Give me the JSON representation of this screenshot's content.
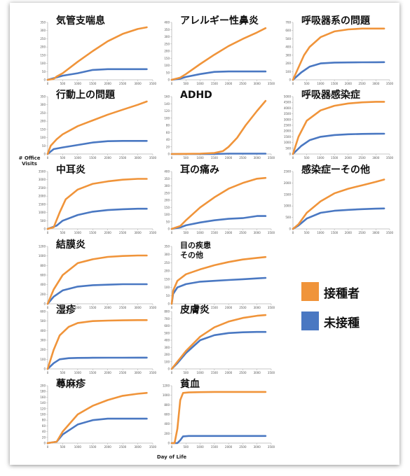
{
  "chart_data": [
    {
      "type": "line",
      "title": "気管支喘息",
      "xlim": [
        0,
        3500
      ],
      "ylim": [
        0,
        350
      ],
      "ytick_step": 50,
      "series": [
        {
          "name": "接種者",
          "x": [
            0,
            200,
            300,
            500,
            1000,
            1500,
            2000,
            2500,
            3000,
            3300
          ],
          "y": [
            0,
            5,
            20,
            40,
            110,
            175,
            235,
            280,
            310,
            320
          ]
        },
        {
          "name": "未接種",
          "x": [
            0,
            300,
            500,
            1000,
            1500,
            2000,
            2500,
            3000,
            3300
          ],
          "y": [
            0,
            15,
            25,
            40,
            60,
            65,
            65,
            65,
            65
          ]
        }
      ]
    },
    {
      "type": "line",
      "title": "アレルギー性鼻炎",
      "xlim": [
        0,
        3500
      ],
      "ylim": [
        0,
        400
      ],
      "ytick_step": 50,
      "series": [
        {
          "name": "接種者",
          "x": [
            0,
            300,
            500,
            1000,
            1500,
            2000,
            2500,
            3000,
            3300
          ],
          "y": [
            0,
            15,
            40,
            110,
            175,
            235,
            285,
            330,
            360
          ]
        },
        {
          "name": "未接種",
          "x": [
            0,
            300,
            500,
            1000,
            1500,
            2000,
            2500,
            3000,
            3300
          ],
          "y": [
            0,
            8,
            20,
            40,
            55,
            58,
            58,
            58,
            58
          ]
        }
      ]
    },
    {
      "type": "line",
      "title": "呼吸器系の問題",
      "xlim": [
        0,
        3500
      ],
      "ylim": [
        0,
        700
      ],
      "ytick_step": 100,
      "series": [
        {
          "name": "接種者",
          "x": [
            0,
            200,
            400,
            600,
            1000,
            1500,
            2000,
            2500,
            3000,
            3300
          ],
          "y": [
            0,
            150,
            300,
            400,
            520,
            590,
            615,
            625,
            625,
            625
          ]
        },
        {
          "name": "未接種",
          "x": [
            0,
            300,
            600,
            1000,
            1500,
            2000,
            2500,
            3000,
            3300
          ],
          "y": [
            0,
            90,
            160,
            200,
            210,
            212,
            213,
            214,
            215
          ]
        }
      ]
    },
    {
      "type": "line",
      "title": "行動上の問題",
      "xlim": [
        0,
        3500
      ],
      "ylim": [
        0,
        350
      ],
      "ytick_step": 50,
      "series": [
        {
          "name": "接種者",
          "x": [
            0,
            100,
            300,
            500,
            1000,
            1500,
            2000,
            2500,
            3000,
            3300
          ],
          "y": [
            0,
            50,
            90,
            120,
            170,
            205,
            240,
            270,
            300,
            320
          ]
        },
        {
          "name": "未接種",
          "x": [
            0,
            200,
            500,
            1000,
            1500,
            2000,
            2500,
            3000,
            3300
          ],
          "y": [
            0,
            30,
            40,
            55,
            70,
            78,
            80,
            80,
            80
          ]
        }
      ]
    },
    {
      "type": "line",
      "title": "ADHD",
      "xlim": [
        0,
        3500
      ],
      "ylim": [
        0,
        160
      ],
      "ytick_step": 20,
      "series": [
        {
          "name": "接種者",
          "x": [
            0,
            1000,
            1500,
            1800,
            2000,
            2300,
            2600,
            3000,
            3300
          ],
          "y": [
            0,
            1,
            3,
            8,
            20,
            45,
            80,
            120,
            148
          ]
        },
        {
          "name": "未接種",
          "x": [
            0,
            1500,
            2000,
            3300
          ],
          "y": [
            0,
            0,
            1,
            1
          ]
        }
      ]
    },
    {
      "type": "line",
      "title": "呼吸器感染症",
      "xlim": [
        0,
        3500
      ],
      "ylim": [
        0,
        5000
      ],
      "ytick_step": 500,
      "series": [
        {
          "name": "接種者",
          "x": [
            0,
            200,
            500,
            1000,
            1500,
            2000,
            2500,
            3000,
            3300
          ],
          "y": [
            0,
            1500,
            2900,
            3800,
            4200,
            4400,
            4500,
            4550,
            4550
          ]
        },
        {
          "name": "未接種",
          "x": [
            0,
            300,
            600,
            1000,
            1500,
            2000,
            2500,
            3000,
            3300
          ],
          "y": [
            0,
            700,
            1200,
            1500,
            1650,
            1720,
            1750,
            1760,
            1770
          ]
        }
      ]
    },
    {
      "type": "line",
      "title": "中耳炎",
      "xlim": [
        0,
        3500
      ],
      "ylim": [
        0,
        3500
      ],
      "ytick_step": 500,
      "series": [
        {
          "name": "接種者",
          "x": [
            0,
            200,
            400,
            600,
            1000,
            1500,
            2000,
            2500,
            3000,
            3300
          ],
          "y": [
            0,
            100,
            1000,
            1800,
            2400,
            2750,
            2900,
            3000,
            3050,
            3050
          ]
        },
        {
          "name": "未接種",
          "x": [
            0,
            300,
            500,
            1000,
            1500,
            2000,
            2500,
            3000,
            3300
          ],
          "y": [
            0,
            200,
            500,
            850,
            1050,
            1150,
            1200,
            1230,
            1230
          ]
        }
      ]
    },
    {
      "type": "line",
      "title": "耳の痛み",
      "xlim": [
        0,
        3500
      ],
      "ylim": [
        0,
        400
      ],
      "ytick_step": 50,
      "series": [
        {
          "name": "接種者",
          "x": [
            0,
            300,
            500,
            1000,
            1500,
            2000,
            2500,
            3000,
            3300
          ],
          "y": [
            0,
            20,
            60,
            150,
            220,
            280,
            320,
            350,
            355
          ]
        },
        {
          "name": "未接種",
          "x": [
            0,
            300,
            500,
            1000,
            1500,
            2000,
            2500,
            3000,
            3300
          ],
          "y": [
            0,
            10,
            25,
            45,
            60,
            70,
            75,
            90,
            90
          ]
        }
      ]
    },
    {
      "type": "line",
      "title": "感染症ーその他",
      "xlim": [
        0,
        3500
      ],
      "ylim": [
        0,
        2500
      ],
      "ytick_step": 500,
      "series": [
        {
          "name": "接種者",
          "x": [
            0,
            200,
            500,
            1000,
            1500,
            2000,
            2500,
            3000,
            3300
          ],
          "y": [
            0,
            200,
            700,
            1200,
            1550,
            1750,
            1900,
            2050,
            2150
          ]
        },
        {
          "name": "未接種",
          "x": [
            0,
            200,
            500,
            1000,
            1500,
            2000,
            2500,
            3000,
            3300
          ],
          "y": [
            0,
            150,
            450,
            700,
            790,
            830,
            860,
            880,
            890
          ]
        }
      ]
    },
    {
      "type": "line",
      "title": "結膜炎",
      "xlim": [
        0,
        3500
      ],
      "ylim": [
        0,
        1200
      ],
      "ytick_step": 200,
      "series": [
        {
          "name": "接種者",
          "x": [
            0,
            200,
            500,
            1000,
            1500,
            2000,
            2500,
            3000,
            3300
          ],
          "y": [
            0,
            300,
            600,
            850,
            930,
            980,
            1000,
            1010,
            1010
          ]
        },
        {
          "name": "未接種",
          "x": [
            0,
            200,
            500,
            1000,
            1500,
            2000,
            2500,
            3000,
            3300
          ],
          "y": [
            0,
            150,
            280,
            360,
            390,
            400,
            410,
            410,
            410
          ]
        }
      ]
    },
    {
      "type": "line",
      "title": "目の疾患\nその他",
      "xlim": [
        0,
        3500
      ],
      "ylim": [
        0,
        350
      ],
      "ytick_step": 50,
      "series": [
        {
          "name": "接種者",
          "x": [
            0,
            50,
            200,
            500,
            1000,
            1500,
            2000,
            2500,
            3000,
            3300
          ],
          "y": [
            0,
            80,
            140,
            180,
            210,
            235,
            255,
            270,
            280,
            285
          ]
        },
        {
          "name": "未接種",
          "x": [
            0,
            50,
            200,
            500,
            1000,
            1500,
            2000,
            2500,
            3000,
            3300
          ],
          "y": [
            0,
            60,
            100,
            120,
            135,
            140,
            145,
            150,
            155,
            158
          ]
        }
      ]
    },
    {
      "type": "line",
      "title": "湿疹",
      "xlim": [
        0,
        3500
      ],
      "ylim": [
        0,
        600
      ],
      "ytick_step": 100,
      "series": [
        {
          "name": "接種者",
          "x": [
            0,
            200,
            400,
            700,
            1000,
            1500,
            2000,
            2500,
            3000,
            3300
          ],
          "y": [
            0,
            200,
            350,
            440,
            480,
            500,
            505,
            508,
            510,
            510
          ]
        },
        {
          "name": "未接種",
          "x": [
            0,
            200,
            400,
            700,
            1000,
            1500,
            2000,
            2500,
            3000,
            3300
          ],
          "y": [
            0,
            60,
            100,
            112,
            115,
            116,
            117,
            117,
            118,
            118
          ]
        }
      ]
    },
    {
      "type": "line",
      "title": "皮膚炎",
      "xlim": [
        0,
        3500
      ],
      "ylim": [
        0,
        800
      ],
      "ytick_step": 100,
      "series": [
        {
          "name": "接種者",
          "x": [
            0,
            200,
            500,
            1000,
            1500,
            2000,
            2500,
            3000,
            3300
          ],
          "y": [
            0,
            100,
            250,
            450,
            580,
            660,
            710,
            740,
            750
          ]
        },
        {
          "name": "未接種",
          "x": [
            0,
            200,
            500,
            1000,
            1500,
            2000,
            2500,
            3000,
            3300
          ],
          "y": [
            0,
            80,
            220,
            400,
            470,
            500,
            510,
            515,
            515
          ]
        }
      ]
    },
    {
      "type": "line",
      "title": "蕁麻疹",
      "xlim": [
        0,
        3500
      ],
      "ylim": [
        0,
        200
      ],
      "ytick_step": 20,
      "series": [
        {
          "name": "接種者",
          "x": [
            0,
            300,
            500,
            1000,
            1500,
            2000,
            2500,
            3000,
            3300
          ],
          "y": [
            0,
            5,
            40,
            100,
            130,
            150,
            165,
            172,
            175
          ]
        },
        {
          "name": "未接種",
          "x": [
            0,
            300,
            500,
            1000,
            1500,
            2000,
            2500,
            3000,
            3300
          ],
          "y": [
            0,
            5,
            30,
            65,
            80,
            85,
            85,
            85,
            85
          ]
        }
      ]
    },
    {
      "type": "line",
      "title": "貧血",
      "xlim": [
        0,
        3500
      ],
      "ylim": [
        0,
        1200
      ],
      "ytick_step": 200,
      "series": [
        {
          "name": "接種者",
          "x": [
            0,
            100,
            200,
            300,
            400,
            600,
            1000,
            1500,
            2000,
            3000,
            3300
          ],
          "y": [
            0,
            0,
            300,
            900,
            1050,
            1060,
            1065,
            1070,
            1070,
            1070,
            1070
          ]
        },
        {
          "name": "未接種",
          "x": [
            0,
            200,
            300,
            400,
            600,
            1000,
            2000,
            3000,
            3300
          ],
          "y": [
            0,
            0,
            60,
            140,
            150,
            150,
            150,
            150,
            150
          ]
        }
      ]
    }
  ],
  "y_axis_label": "# Office Visits",
  "x_axis_label": "Day of Life",
  "legend": [
    {
      "label": "接種者",
      "color": "#f0943a"
    },
    {
      "label": "未接種",
      "color": "#4a78c2"
    }
  ],
  "colors": {
    "vaccinated": "#f0943a",
    "unvaccinated": "#4a78c2",
    "axis": "#b5b5b5"
  }
}
